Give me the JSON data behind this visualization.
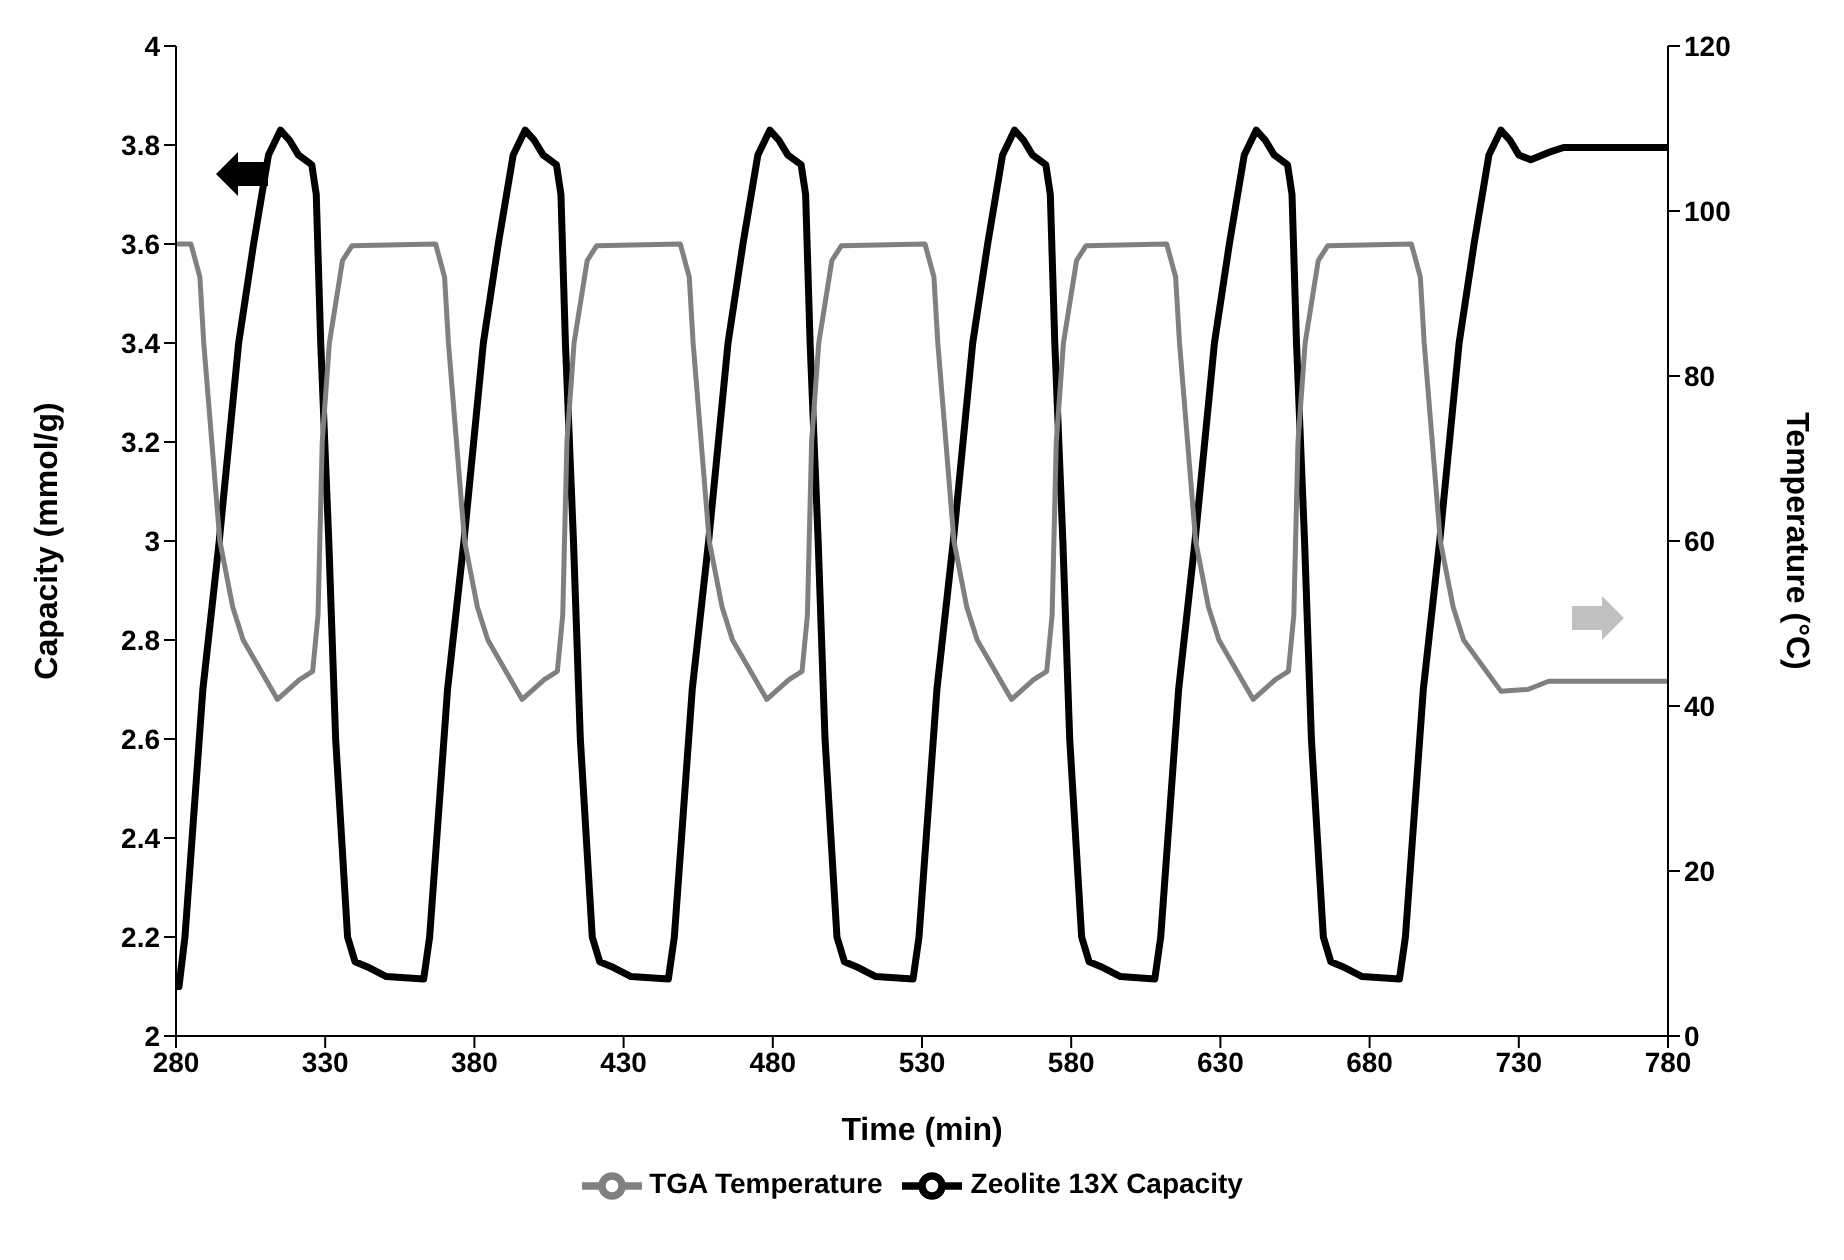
{
  "chart_data": {
    "type": "line",
    "xlabel": "Time (min)",
    "ylabel": "Capacity (mmol/g)",
    "y2label": "Temperature (°C)",
    "xlim": [
      280,
      780
    ],
    "xticks": [
      280,
      330,
      380,
      430,
      480,
      530,
      580,
      630,
      680,
      730,
      780
    ],
    "ylim": [
      2,
      4
    ],
    "yticks": [
      2,
      2.2,
      2.4,
      2.6,
      2.8,
      3,
      3.2,
      3.4,
      3.6,
      3.8,
      4
    ],
    "y2lim": [
      0,
      120
    ],
    "y2ticks": [
      0,
      20,
      40,
      60,
      80,
      100,
      120
    ],
    "grid": false,
    "legend": "bottom",
    "marker": "none",
    "line_style": "solid",
    "series": [
      {
        "name": "Zeolite 13X Capacity",
        "color": "#000000",
        "x": [
          280,
          281,
          283,
          285.4,
          289,
          294.5,
          301,
          306,
          311,
          315,
          318,
          321,
          325.5,
          327,
          328.5,
          331.2,
          333.5,
          337.5,
          340,
          344,
          350.5,
          363,
          365,
          367.4,
          371,
          376.5,
          383,
          388,
          393,
          397,
          400,
          403,
          407.5,
          409,
          410.5,
          413.2,
          415.5,
          419.5,
          422,
          426,
          432.5,
          445,
          447,
          449.4,
          453,
          458.5,
          465,
          470,
          475,
          479,
          482,
          485,
          489.5,
          491,
          492.5,
          495.2,
          497.5,
          501.5,
          504,
          508,
          514.5,
          527,
          529,
          531.4,
          535,
          540.5,
          547,
          552,
          557,
          561,
          564,
          567,
          571.5,
          573,
          574.5,
          577.2,
          579.5,
          583.5,
          586,
          590,
          596.5,
          608,
          610,
          612.4,
          616,
          621.5,
          628,
          633,
          638,
          642,
          645,
          648,
          652.5,
          654,
          655.5,
          658.2,
          660.5,
          664.5,
          667,
          671,
          677.5,
          690,
          692,
          694.4,
          698,
          703.5,
          710,
          715,
          720,
          724,
          727,
          730,
          734,
          740,
          745,
          780
        ],
        "values": [
          2.1,
          2.1,
          2.2,
          2.4,
          2.7,
          3,
          3.4,
          3.6,
          3.78,
          3.83,
          3.81,
          3.78,
          3.76,
          3.7,
          3.4,
          3,
          2.6,
          2.2,
          2.15,
          2.14,
          2.12,
          2.115,
          2.2,
          2.4,
          2.7,
          3,
          3.4,
          3.6,
          3.78,
          3.83,
          3.81,
          3.78,
          3.76,
          3.7,
          3.4,
          3,
          2.6,
          2.2,
          2.15,
          2.14,
          2.12,
          2.115,
          2.2,
          2.4,
          2.7,
          3,
          3.4,
          3.6,
          3.78,
          3.83,
          3.81,
          3.78,
          3.76,
          3.7,
          3.4,
          3,
          2.6,
          2.2,
          2.15,
          2.14,
          2.12,
          2.115,
          2.2,
          2.4,
          2.7,
          3,
          3.4,
          3.6,
          3.78,
          3.83,
          3.81,
          3.78,
          3.76,
          3.7,
          3.4,
          3,
          2.6,
          2.2,
          2.15,
          2.14,
          2.12,
          2.115,
          2.2,
          2.4,
          2.7,
          3,
          3.4,
          3.6,
          3.78,
          3.83,
          3.81,
          3.78,
          3.76,
          3.7,
          3.4,
          3,
          2.6,
          2.2,
          2.15,
          2.14,
          2.12,
          2.115,
          2.2,
          2.4,
          2.7,
          3,
          3.4,
          3.6,
          3.78,
          3.83,
          3.81,
          3.78,
          3.77,
          3.785,
          3.795,
          3.795
        ]
      },
      {
        "name": "TGA Temperature",
        "color": "#808080",
        "axis": "y2",
        "x": [
          280,
          285,
          288,
          289.3,
          294.7,
          299,
          302.5,
          314,
          321.4,
          325.8,
          327.6,
          329,
          331.4,
          335.8,
          339,
          367,
          370,
          371.3,
          376.7,
          381,
          384.5,
          396,
          403.4,
          407.8,
          409.6,
          411,
          413.4,
          417.8,
          421,
          449,
          452,
          453.3,
          458.7,
          463,
          466.5,
          478,
          485.4,
          489.8,
          491.6,
          493,
          495.4,
          499.8,
          503,
          531,
          534,
          535.3,
          540.7,
          545,
          548.5,
          560,
          567.4,
          571.8,
          573.6,
          575,
          577.4,
          581.8,
          585,
          612,
          615,
          616.3,
          621.7,
          626,
          629.5,
          641,
          648.4,
          652.8,
          654.6,
          656,
          658.4,
          662.8,
          666,
          694,
          697,
          698.3,
          703.7,
          708,
          711.5,
          724,
          733,
          740,
          780
        ],
        "values": [
          96,
          96,
          92,
          84,
          60,
          52,
          48,
          40.8,
          43.2,
          44.2,
          51,
          72,
          84,
          94,
          95.8,
          96,
          92,
          84,
          60,
          52,
          48,
          40.8,
          43.2,
          44.2,
          51,
          72,
          84,
          94,
          95.8,
          96,
          92,
          84,
          60,
          52,
          48,
          40.8,
          43.2,
          44.2,
          51,
          72,
          84,
          94,
          95.8,
          96,
          92,
          84,
          60,
          52,
          48,
          40.8,
          43.2,
          44.2,
          51,
          72,
          84,
          94,
          95.8,
          96,
          92,
          84,
          60,
          52,
          48,
          40.8,
          43.2,
          44.2,
          51,
          72,
          84,
          94,
          95.8,
          96,
          92,
          84,
          60,
          52,
          48,
          41.8,
          42,
          43,
          43
        ]
      }
    ]
  }
}
